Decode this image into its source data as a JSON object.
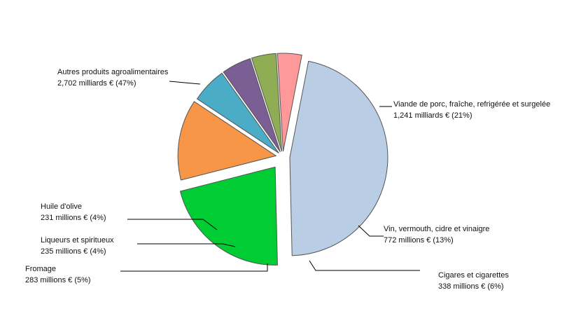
{
  "chart_data": {
    "type": "pie",
    "title": "",
    "legend": "none",
    "slices": [
      {
        "name": "Autres produits agroalimentaires",
        "value_text": "2,702 milliards € (47%)",
        "value": 2702,
        "percent": 47,
        "color": "#b9cde5"
      },
      {
        "name": "Viande de porc, fraîche, refrigérée et surgelée",
        "value_text": "1,241 milliards € (21%)",
        "value": 1241,
        "percent": 21,
        "color": "#00cc33"
      },
      {
        "name": "Vin, vermouth, cidre et vinaigre",
        "value_text": "772 millions €  (13%)",
        "value": 772,
        "percent": 13,
        "color": "#f79646"
      },
      {
        "name": "Cigares et cigarettes",
        "value_text": "338 millions € (6%)",
        "value": 338,
        "percent": 6,
        "color": "#4aacc6"
      },
      {
        "name": "Fromage",
        "value_text": "283 millions € (5%)",
        "value": 283,
        "percent": 5,
        "color": "#7a5e94"
      },
      {
        "name": "Liqueurs et spiritueux",
        "value_text": "235 millions € (4%)",
        "value": 235,
        "percent": 4,
        "color": "#8fad55"
      },
      {
        "name": "Huile d'olive",
        "value_text": "231 millions € (4%)",
        "value": 231,
        "percent": 4,
        "color": "#ff9999"
      }
    ]
  }
}
